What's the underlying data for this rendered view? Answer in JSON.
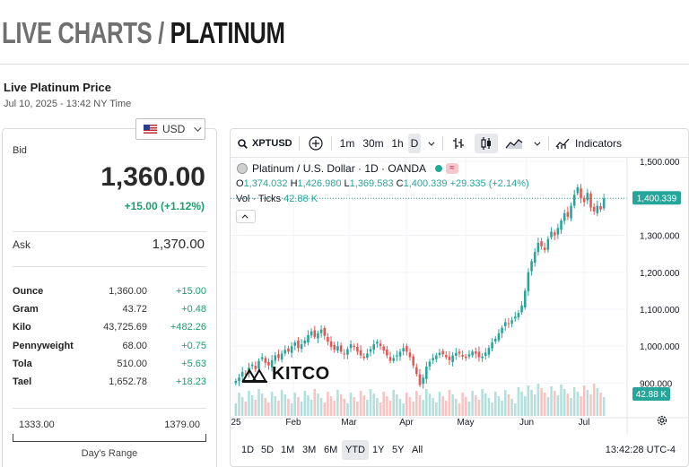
{
  "header": {
    "title_light": "LIVE CHARTS /",
    "title_dark": "PLATINUM"
  },
  "price_section": {
    "heading": "Live Platinum Price",
    "timestamp": "Jul 10, 2025 - 13:42 NY Time"
  },
  "currency": {
    "selected": "USD",
    "flag_icon": "us-flag-icon"
  },
  "bid": {
    "label": "Bid",
    "value": "1,360.00",
    "change": "+15.00 (+1.12%)"
  },
  "ask": {
    "label": "Ask",
    "value": "1,370.00"
  },
  "units": [
    {
      "name": "Ounce",
      "value": "1,360.00",
      "change": "+15.00"
    },
    {
      "name": "Gram",
      "value": "43.72",
      "change": "+0.48"
    },
    {
      "name": "Kilo",
      "value": "43,725.69",
      "change": "+482.26"
    },
    {
      "name": "Pennyweight",
      "value": "68.00",
      "change": "+0.75"
    },
    {
      "name": "Tola",
      "value": "510.00",
      "change": "+5.63"
    },
    {
      "name": "Tael",
      "value": "1,652.78",
      "change": "+18.23"
    }
  ],
  "days_range": {
    "low": "1333.00",
    "high": "1379.00",
    "label": "Day's Range"
  },
  "chart_toolbar": {
    "symbol": "XPTUSD",
    "intervals": [
      "1m",
      "30m",
      "1h",
      "D"
    ],
    "active_interval": "D",
    "indicators_label": "Indicators"
  },
  "chart_legend": {
    "title": "Platinum / U.S. Dollar · 1D · OANDA",
    "o_label": "O",
    "o": "1,374.032",
    "h_label": "H",
    "h": "1,426.980",
    "l_label": "L",
    "l": "1,369.583",
    "c_label": "C",
    "c": "1,400.339",
    "change": "+29.335 (+2.14%)",
    "vol_label": "Vol · Ticks",
    "vol_value": "42.88 K"
  },
  "chart_brand": "KITCO",
  "ranges": [
    "1D",
    "5D",
    "1M",
    "3M",
    "6M",
    "YTD",
    "1Y",
    "5Y",
    "All"
  ],
  "active_range": "YTD",
  "clock": "13:42:28 UTC-4",
  "colors": {
    "up": "#26a69a",
    "down": "#ef5350",
    "accent_green": "#1a9e6a"
  },
  "chart_data": {
    "type": "candlestick",
    "y_ticks": [
      "1,500.000",
      "1,400.000",
      "1,300.000",
      "1,200.000",
      "1,100.000",
      "1,000.000",
      "900.000"
    ],
    "ylim": [
      850,
      1510
    ],
    "x_ticks": [
      "25",
      "Feb",
      "Mar",
      "Apr",
      "May",
      "Jun",
      "Jul"
    ],
    "last_price_label": "1,400.339",
    "volume_label": "42.88 K",
    "series_close": [
      906,
      915,
      930,
      925,
      942,
      950,
      938,
      960,
      970,
      955,
      948,
      962,
      975,
      968,
      980,
      990,
      985,
      1000,
      1010,
      995,
      1005,
      1015,
      1030,
      1040,
      1025,
      1035,
      1045,
      1028,
      1012,
      998,
      990,
      1000,
      985,
      978,
      992,
      1005,
      998,
      985,
      975,
      968,
      980,
      992,
      1005,
      1012,
      1000,
      988,
      975,
      960,
      968,
      975,
      985,
      995,
      985,
      970,
      948,
      925,
      895,
      915,
      945,
      958,
      968,
      975,
      982,
      978,
      970,
      962,
      975,
      982,
      980,
      972,
      968,
      978,
      985,
      980,
      970,
      972,
      982,
      995,
      1010,
      1020,
      1035,
      1050,
      1065,
      1060,
      1070,
      1080,
      1090,
      1110,
      1150,
      1200,
      1230,
      1255,
      1280,
      1270,
      1260,
      1290,
      1310,
      1300,
      1320,
      1340,
      1360,
      1350,
      1380,
      1410,
      1430,
      1400,
      1390,
      1415,
      1375,
      1365,
      1380,
      1370,
      1400
    ]
  }
}
